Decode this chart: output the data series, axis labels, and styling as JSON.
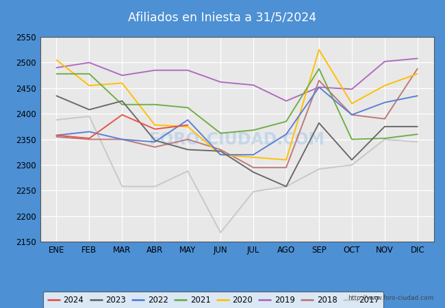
{
  "title": "Afiliados en Iniesta a 31/5/2024",
  "title_bg_color": "#4d90d4",
  "title_text_color": "white",
  "border_color": "#4d90d4",
  "ylim": [
    2150,
    2550
  ],
  "yticks": [
    2150,
    2200,
    2250,
    2300,
    2350,
    2400,
    2450,
    2500,
    2550
  ],
  "months": [
    "ENE",
    "FEB",
    "MAR",
    "ABR",
    "MAY",
    "JUN",
    "JUL",
    "AGO",
    "SEP",
    "OCT",
    "NOV",
    "DIC"
  ],
  "url": "http://www.foro-ciudad.com",
  "watermark": "FORO-CIUDAD.COM",
  "series": {
    "2024": {
      "color": "#e8534a",
      "data": [
        2358,
        2352,
        2398,
        2370,
        2378,
        null,
        null,
        null,
        null,
        null,
        null,
        null
      ]
    },
    "2023": {
      "color": "#696969",
      "data": [
        2435,
        2408,
        2425,
        2348,
        2330,
        2327,
        2286,
        2258,
        2382,
        2310,
        2375,
        2375
      ]
    },
    "2022": {
      "color": "#5a7fd4",
      "data": [
        2358,
        2365,
        2350,
        2345,
        2388,
        2320,
        2320,
        2360,
        2452,
        2398,
        2422,
        2435
      ]
    },
    "2021": {
      "color": "#70ad47",
      "data": [
        2478,
        2478,
        2418,
        2418,
        2412,
        2362,
        2368,
        2385,
        2488,
        2350,
        2352,
        2360
      ]
    },
    "2020": {
      "color": "#ffc000",
      "data": [
        2505,
        2455,
        2460,
        2378,
        2375,
        2320,
        2315,
        2310,
        2525,
        2420,
        2455,
        2478
      ]
    },
    "2019": {
      "color": "#b06abf",
      "data": [
        2490,
        2500,
        2475,
        2485,
        2485,
        2462,
        2456,
        2425,
        2452,
        2448,
        2502,
        2508
      ]
    },
    "2018": {
      "color": "#c07878",
      "data": [
        2355,
        2350,
        2350,
        2335,
        2350,
        2330,
        2295,
        2295,
        2465,
        2398,
        2390,
        2488
      ]
    },
    "2017": {
      "color": "#c8c8c8",
      "data": [
        2388,
        2395,
        2258,
        2258,
        2288,
        2168,
        2248,
        2258,
        2292,
        2300,
        2350,
        2345
      ]
    }
  },
  "legend_order": [
    "2024",
    "2023",
    "2022",
    "2021",
    "2020",
    "2019",
    "2018",
    "2017"
  ],
  "plot_order": [
    "2017",
    "2018",
    "2019",
    "2020",
    "2021",
    "2022",
    "2023",
    "2024"
  ]
}
